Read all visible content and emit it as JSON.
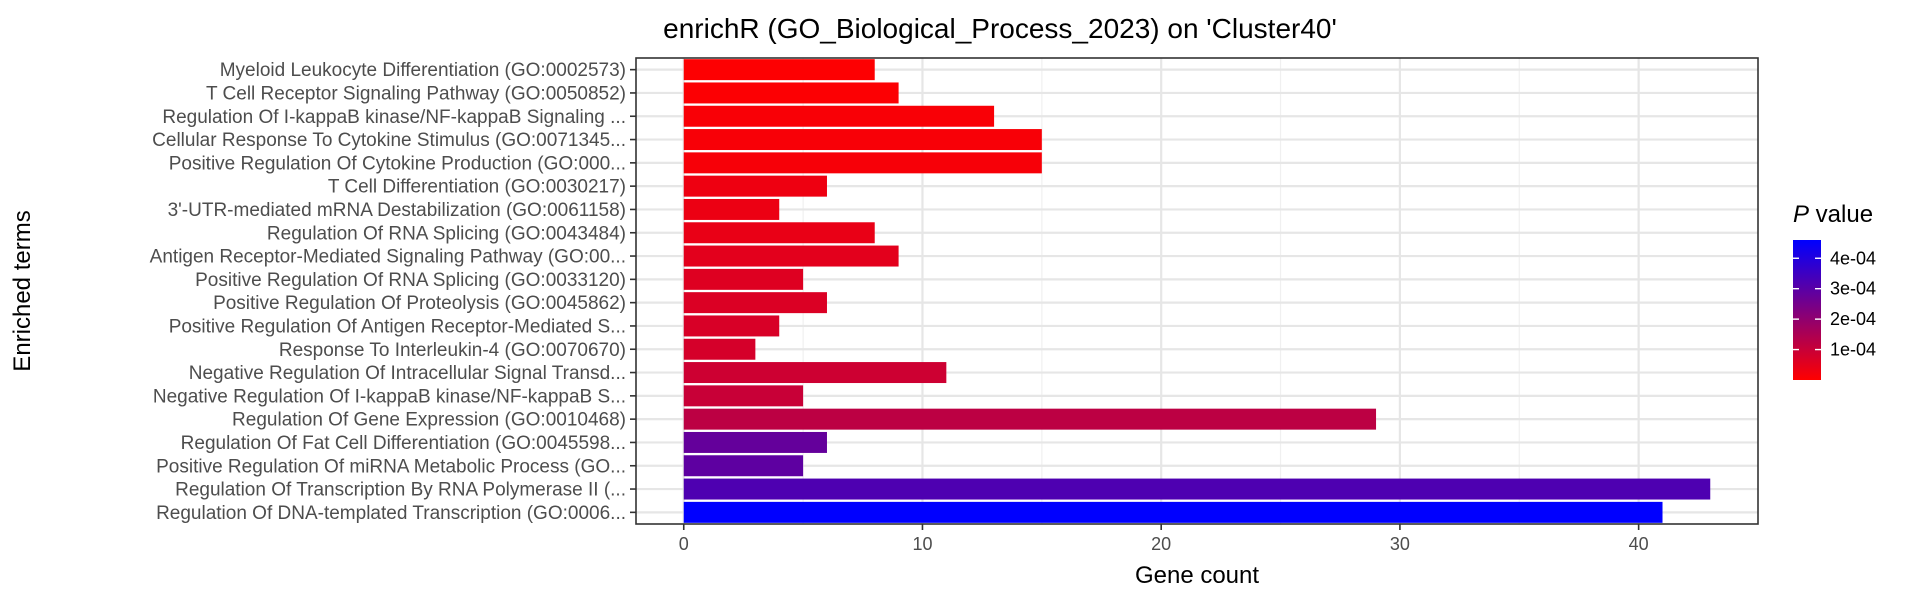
{
  "chart_data": {
    "type": "bar",
    "orientation": "horizontal",
    "title": "enrichR (GO_Biological_Process_2023) on 'Cluster40'",
    "xlabel": "Gene count",
    "ylabel": "Enriched terms",
    "xlim": [
      -2,
      45
    ],
    "x_ticks": [
      0,
      10,
      20,
      30,
      40
    ],
    "grid": true,
    "legend": {
      "title_italic": "P",
      "title_rest": " value",
      "position": "right",
      "scale": "continuous",
      "range": [
        0,
        0.00046
      ],
      "ticks": [
        {
          "value": 0.0001,
          "label": "1e-04"
        },
        {
          "value": 0.0002,
          "label": "2e-04"
        },
        {
          "value": 0.0003,
          "label": "3e-04"
        },
        {
          "value": 0.0004,
          "label": "4e-04"
        }
      ],
      "low_color": "#ff0000",
      "high_color": "#0000ff"
    },
    "categories": [
      "Myeloid Leukocyte Differentiation (GO:0002573)",
      "T Cell Receptor Signaling Pathway (GO:0050852)",
      "Regulation Of I-kappaB kinase/NF-kappaB Signaling ...",
      "Cellular Response To Cytokine Stimulus (GO:0071345...",
      "Positive Regulation Of Cytokine Production (GO:000...",
      "T Cell Differentiation (GO:0030217)",
      "3'-UTR-mediated mRNA Destabilization (GO:0061158)",
      "Regulation Of RNA Splicing (GO:0043484)",
      "Antigen Receptor-Mediated Signaling Pathway (GO:00...",
      "Positive Regulation Of RNA Splicing (GO:0033120)",
      "Positive Regulation Of Proteolysis (GO:0045862)",
      "Positive Regulation Of Antigen Receptor-Mediated S...",
      "Response To Interleukin-4 (GO:0070670)",
      "Negative Regulation Of Intracellular Signal Transd...",
      "Negative Regulation Of I-kappaB kinase/NF-kappaB S...",
      "Regulation Of Gene Expression (GO:0010468)",
      "Regulation Of Fat Cell Differentiation (GO:0045598...",
      "Positive Regulation Of miRNA Metabolic Process (GO...",
      "Regulation Of Transcription By RNA Polymerase II (...",
      "Regulation Of DNA-templated Transcription (GO:0006..."
    ],
    "values": [
      8,
      9,
      13,
      15,
      15,
      6,
      4,
      8,
      9,
      5,
      6,
      4,
      3,
      11,
      5,
      29,
      6,
      5,
      43,
      41
    ],
    "p_values": [
      4e-06,
      6e-06,
      1e-05,
      1.2e-05,
      1.4e-05,
      3e-05,
      3.5e-05,
      4e-05,
      5e-05,
      6e-05,
      6.5e-05,
      7e-05,
      7.5e-05,
      9e-05,
      0.0001,
      0.00012,
      0.00028,
      0.00029,
      0.00032,
      0.00046
    ]
  }
}
